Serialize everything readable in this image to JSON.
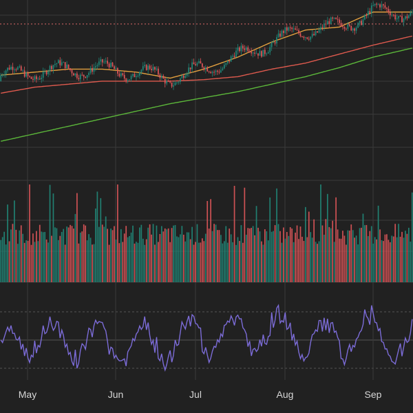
{
  "colors": {
    "background": "#212121",
    "grid": "#3a3a3a",
    "up": "#21897a",
    "down": "#e0575a",
    "ma_fast": "#e3a03f",
    "ma_mid": "#df5a4e",
    "ma_slow": "#5cb83a",
    "rsi": "#7c6cd8",
    "ref_line": "#e06a6a",
    "axis_text": "#d7d7d7"
  },
  "chart_data": {
    "type": "candlestick",
    "x_axis": {
      "tick_labels": [
        "May",
        "Jun",
        "Jul",
        "Aug",
        "Sep"
      ]
    },
    "price_panel": {
      "ylim": [
        52,
        112
      ],
      "reference_line": 104,
      "candles": [],
      "ma_series": [
        {
          "key": "ma_slow",
          "x": [
            0,
            20,
            40,
            60,
            80,
            100,
            120,
            140,
            160,
            180,
            200,
            220,
            243
          ],
          "values": [
            65,
            67.5,
            70,
            72.5,
            75,
            77.5,
            79.5,
            81.5,
            84,
            86.5,
            89.5,
            93,
            96
          ]
        },
        {
          "key": "ma_mid",
          "x": [
            0,
            20,
            40,
            60,
            80,
            100,
            120,
            140,
            160,
            180,
            200,
            220,
            243
          ],
          "values": [
            81,
            83,
            84,
            85,
            85,
            85,
            85.5,
            86.5,
            89,
            91,
            94,
            97,
            100
          ]
        },
        {
          "key": "ma_fast",
          "x": [
            0,
            20,
            40,
            60,
            80,
            100,
            120,
            140,
            160,
            180,
            200,
            220,
            243
          ],
          "values": [
            87,
            88,
            89,
            89,
            88,
            86,
            89,
            93,
            98,
            102,
            103,
            108,
            108
          ]
        }
      ]
    },
    "volume_panel": {
      "ylim": [
        0,
        100
      ],
      "bars": []
    },
    "rsi_panel": {
      "ylim": [
        20,
        80
      ],
      "guides": [
        70,
        30
      ],
      "values": []
    }
  }
}
